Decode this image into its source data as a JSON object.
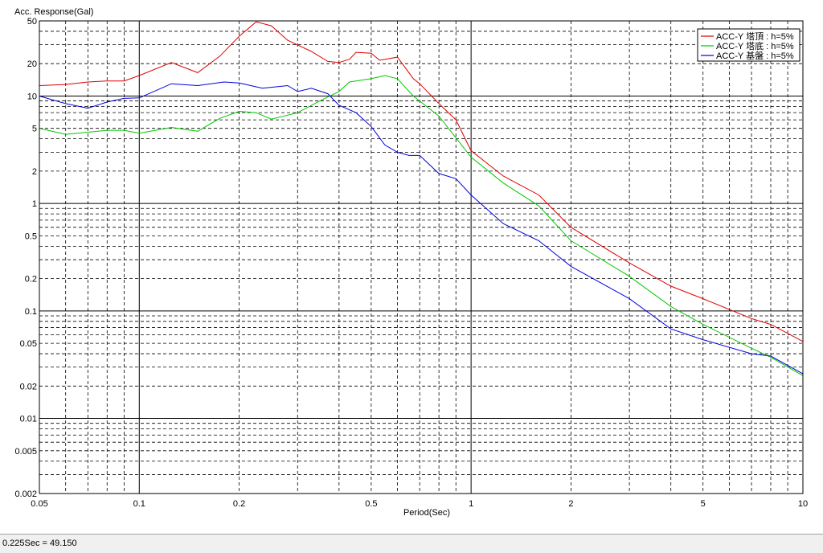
{
  "status_bar": {
    "readout": "0.225Sec = 49.150"
  },
  "colors": {
    "red": "#e00000",
    "green": "#00c800",
    "blue": "#0000e0"
  },
  "chart_data": {
    "type": "line",
    "xscale": "log",
    "yscale": "log",
    "xlim": [
      0.05,
      10
    ],
    "ylim": [
      0.002,
      50
    ],
    "xlabel": "Period(Sec)",
    "ylabel": "Acc. Response(Gal)",
    "grid": true,
    "legend_position": "top-right",
    "x_ticks": [
      {
        "value": 0.05,
        "label": "0.05"
      },
      {
        "value": 0.1,
        "label": "0.1"
      },
      {
        "value": 0.2,
        "label": "0.2"
      },
      {
        "value": 0.5,
        "label": "0.5"
      },
      {
        "value": 1,
        "label": "1"
      },
      {
        "value": 2,
        "label": "2"
      },
      {
        "value": 5,
        "label": "5"
      },
      {
        "value": 10,
        "label": "10"
      }
    ],
    "y_ticks": [
      {
        "value": 50,
        "label": "50"
      },
      {
        "value": 20,
        "label": "20"
      },
      {
        "value": 10,
        "label": "10"
      },
      {
        "value": 5,
        "label": "5"
      },
      {
        "value": 2,
        "label": "2"
      },
      {
        "value": 1,
        "label": "1"
      },
      {
        "value": 0.5,
        "label": "0.5"
      },
      {
        "value": 0.2,
        "label": "0.2"
      },
      {
        "value": 0.1,
        "label": "0.1"
      },
      {
        "value": 0.05,
        "label": "0.05"
      },
      {
        "value": 0.02,
        "label": "0.02"
      },
      {
        "value": 0.01,
        "label": "0.01"
      },
      {
        "value": 0.005,
        "label": "0.005"
      },
      {
        "value": 0.002,
        "label": "0.002"
      }
    ],
    "series": [
      {
        "name": "ACC-Y 塔頂 : h=5%",
        "color": "#e00000",
        "points": [
          [
            0.05,
            12.5
          ],
          [
            0.06,
            12.8
          ],
          [
            0.07,
            13.5
          ],
          [
            0.08,
            13.8
          ],
          [
            0.09,
            13.8
          ],
          [
            0.1,
            15.5
          ],
          [
            0.125,
            20.5
          ],
          [
            0.15,
            16.5
          ],
          [
            0.175,
            23.5
          ],
          [
            0.2,
            36
          ],
          [
            0.225,
            49
          ],
          [
            0.25,
            45
          ],
          [
            0.28,
            33
          ],
          [
            0.33,
            26
          ],
          [
            0.37,
            21
          ],
          [
            0.4,
            20.5
          ],
          [
            0.43,
            22
          ],
          [
            0.45,
            25.5
          ],
          [
            0.5,
            25
          ],
          [
            0.53,
            21.5
          ],
          [
            0.6,
            23
          ],
          [
            0.67,
            14.5
          ],
          [
            0.7,
            13
          ],
          [
            0.8,
            8.5
          ],
          [
            0.9,
            6
          ],
          [
            1.0,
            3.1
          ],
          [
            1.25,
            1.8
          ],
          [
            1.6,
            1.2
          ],
          [
            2.0,
            0.6
          ],
          [
            3.0,
            0.28
          ],
          [
            4.0,
            0.17
          ],
          [
            5.0,
            0.13
          ],
          [
            7.0,
            0.085
          ],
          [
            8.0,
            0.075
          ],
          [
            10.0,
            0.052
          ]
        ]
      },
      {
        "name": "ACC-Y 塔底 : h=5%",
        "color": "#00c800",
        "points": [
          [
            0.05,
            5.0
          ],
          [
            0.06,
            4.4
          ],
          [
            0.07,
            4.6
          ],
          [
            0.08,
            4.8
          ],
          [
            0.09,
            4.8
          ],
          [
            0.1,
            4.5
          ],
          [
            0.125,
            5.1
          ],
          [
            0.15,
            4.7
          ],
          [
            0.175,
            6.2
          ],
          [
            0.2,
            7.2
          ],
          [
            0.225,
            7.0
          ],
          [
            0.25,
            6.1
          ],
          [
            0.3,
            7.0
          ],
          [
            0.35,
            9.0
          ],
          [
            0.4,
            11
          ],
          [
            0.43,
            13.5
          ],
          [
            0.5,
            14.5
          ],
          [
            0.55,
            15.5
          ],
          [
            0.6,
            14.5
          ],
          [
            0.67,
            10
          ],
          [
            0.8,
            6.5
          ],
          [
            1.0,
            2.7
          ],
          [
            1.25,
            1.55
          ],
          [
            1.6,
            0.95
          ],
          [
            2.0,
            0.45
          ],
          [
            3.0,
            0.21
          ],
          [
            4.0,
            0.11
          ],
          [
            5.0,
            0.075
          ],
          [
            7.0,
            0.045
          ],
          [
            8.0,
            0.037
          ],
          [
            10.0,
            0.025
          ]
        ]
      },
      {
        "name": "ACC-Y 基盤 : h=5%",
        "color": "#0000e0",
        "points": [
          [
            0.05,
            10
          ],
          [
            0.06,
            8.5
          ],
          [
            0.07,
            7.7
          ],
          [
            0.08,
            8.8
          ],
          [
            0.09,
            9.5
          ],
          [
            0.1,
            9.6
          ],
          [
            0.125,
            13
          ],
          [
            0.15,
            12.5
          ],
          [
            0.18,
            13.5
          ],
          [
            0.2,
            13.2
          ],
          [
            0.235,
            11.8
          ],
          [
            0.28,
            12.5
          ],
          [
            0.3,
            11
          ],
          [
            0.33,
            11.8
          ],
          [
            0.37,
            10.5
          ],
          [
            0.4,
            8.2
          ],
          [
            0.45,
            7
          ],
          [
            0.5,
            5.2
          ],
          [
            0.55,
            3.5
          ],
          [
            0.6,
            3.0
          ],
          [
            0.65,
            2.8
          ],
          [
            0.7,
            2.8
          ],
          [
            0.8,
            1.9
          ],
          [
            0.9,
            1.7
          ],
          [
            1.0,
            1.2
          ],
          [
            1.25,
            0.65
          ],
          [
            1.6,
            0.45
          ],
          [
            2.0,
            0.26
          ],
          [
            3.0,
            0.13
          ],
          [
            4.0,
            0.068
          ],
          [
            5.0,
            0.054
          ],
          [
            7.0,
            0.04
          ],
          [
            8.0,
            0.038
          ],
          [
            10.0,
            0.026
          ]
        ]
      }
    ]
  }
}
